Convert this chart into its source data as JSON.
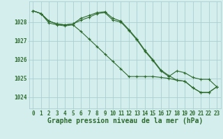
{
  "line1": {
    "x": [
      0,
      1,
      2,
      3,
      4,
      5,
      6,
      7,
      8,
      9,
      10,
      11,
      12,
      13,
      14,
      15,
      16,
      17,
      18,
      19,
      20,
      21,
      22,
      23
    ],
    "y": [
      1028.6,
      1028.45,
      1028.05,
      1027.9,
      1027.85,
      1027.9,
      1028.2,
      1028.35,
      1028.5,
      1028.55,
      1028.2,
      1028.05,
      1027.6,
      1027.1,
      1026.5,
      1026.0,
      1025.45,
      1025.15,
      1024.9,
      1024.85,
      1024.5,
      1024.25,
      1024.25,
      1024.55
    ],
    "color": "#2d6a2d"
  },
  "line2": {
    "x": [
      0,
      1,
      2,
      3,
      4,
      5,
      6,
      7,
      8,
      9,
      10,
      11,
      12,
      13,
      14,
      15,
      16,
      17,
      18,
      19,
      20,
      21,
      22,
      23
    ],
    "y": [
      1028.6,
      1028.45,
      1027.95,
      1027.85,
      1027.8,
      1027.85,
      1027.5,
      1027.1,
      1026.7,
      1026.3,
      1025.9,
      1025.5,
      1025.1,
      1025.1,
      1025.1,
      1025.1,
      1025.05,
      1025.0,
      1024.9,
      1024.85,
      1024.5,
      1024.25,
      1024.25,
      1024.55
    ],
    "color": "#2d6a2d"
  },
  "line3": {
    "x": [
      0,
      1,
      2,
      3,
      4,
      5,
      6,
      7,
      8,
      9,
      10,
      11,
      12,
      13,
      14,
      15,
      16,
      17,
      18,
      19,
      20,
      21,
      22,
      23
    ],
    "y": [
      1028.6,
      1028.45,
      1028.05,
      1027.9,
      1027.85,
      1027.9,
      1028.1,
      1028.25,
      1028.45,
      1028.5,
      1028.1,
      1028.0,
      1027.55,
      1027.05,
      1026.45,
      1025.95,
      1025.4,
      1025.1,
      1025.4,
      1025.3,
      1025.05,
      1024.95,
      1024.95,
      1024.55
    ],
    "color": "#2d6a2d"
  },
  "bg_color": "#d4eeed",
  "grid_color": "#aacfcf",
  "line_color": "#2d6a2d",
  "ylabel_values": [
    1024,
    1025,
    1026,
    1027,
    1028
  ],
  "xlabel_label": "Graphe pression niveau de la mer (hPa)",
  "xlim": [
    -0.5,
    23.5
  ],
  "ylim": [
    1023.4,
    1029.1
  ],
  "xtick_labels": [
    "0",
    "1",
    "2",
    "3",
    "4",
    "5",
    "6",
    "7",
    "8",
    "9",
    "10",
    "11",
    "12",
    "13",
    "14",
    "15",
    "16",
    "17",
    "18",
    "19",
    "20",
    "21",
    "22",
    "23"
  ],
  "tick_fontsize": 5.5,
  "xlabel_fontsize": 7.0,
  "lw": 0.8,
  "ms": 3.5
}
